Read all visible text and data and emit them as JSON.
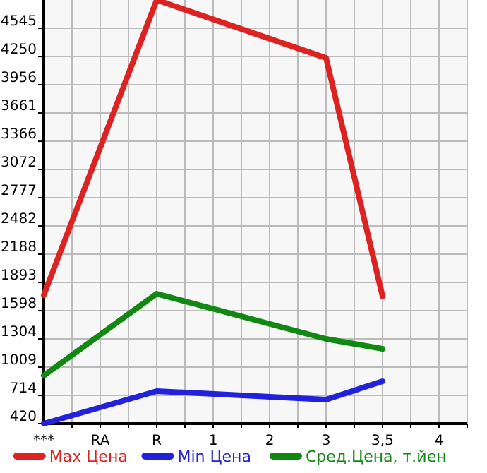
{
  "chart_data": {
    "type": "line",
    "categories": [
      "***",
      "RA",
      "R",
      "1",
      "2",
      "3",
      "3,5",
      "4"
    ],
    "series": [
      {
        "name": "Max Цена",
        "color": "#dd2222",
        "values": [
          1760,
          null,
          4840,
          null,
          null,
          4235,
          1750,
          null
        ]
      },
      {
        "name": "Min Цена",
        "color": "#2222dd",
        "values": [
          420,
          null,
          759,
          null,
          null,
          670,
          862,
          null
        ]
      },
      {
        "name": "Сред.Цена, т.йен",
        "color": "#118811",
        "values": [
          921,
          null,
          1775,
          null,
          null,
          1304,
          1201,
          null
        ]
      }
    ],
    "ylim": [
      420,
      4840
    ],
    "yticks": [
      420,
      714,
      1009,
      1304,
      1598,
      1893,
      2188,
      2482,
      2777,
      3072,
      3366,
      3661,
      3956,
      4250,
      4545
    ],
    "grid": true,
    "legend": "bottom",
    "marker": "none",
    "line_style": "solid"
  }
}
